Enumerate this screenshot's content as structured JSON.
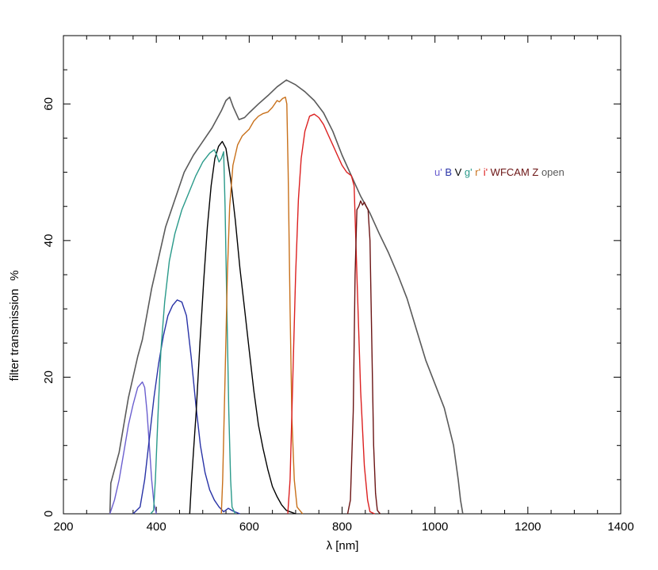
{
  "chart_data": {
    "type": "line",
    "title": "",
    "xlabel": "λ [nm]",
    "ylabel": "filter transmission",
    "ylabel_unit": "%",
    "xlim": [
      200,
      1400
    ],
    "ylim": [
      0,
      70
    ],
    "x_ticks": [
      200,
      400,
      600,
      800,
      1000,
      1200,
      1400
    ],
    "y_ticks": [
      0,
      20,
      40,
      60
    ],
    "x_tick_labels": [
      "200",
      "400",
      "600",
      "800",
      "1000",
      "1200",
      "1400"
    ],
    "y_tick_labels": [
      "0",
      "20",
      "40",
      "60"
    ],
    "grid": false,
    "legend_position": "upper-right",
    "series": [
      {
        "name": "open",
        "color": "#5a5a5a",
        "points": [
          [
            300,
            0
          ],
          [
            302,
            4.5
          ],
          [
            320,
            9
          ],
          [
            340,
            17
          ],
          [
            360,
            23
          ],
          [
            370,
            25.5
          ],
          [
            390,
            33
          ],
          [
            400,
            36
          ],
          [
            420,
            42
          ],
          [
            440,
            46
          ],
          [
            460,
            50
          ],
          [
            480,
            52.5
          ],
          [
            500,
            54.5
          ],
          [
            520,
            56.5
          ],
          [
            540,
            59
          ],
          [
            550,
            60.5
          ],
          [
            558,
            61
          ],
          [
            566,
            59.5
          ],
          [
            578,
            57.7
          ],
          [
            590,
            58
          ],
          [
            600,
            58.7
          ],
          [
            620,
            60
          ],
          [
            640,
            61.2
          ],
          [
            660,
            62.5
          ],
          [
            680,
            63.5
          ],
          [
            700,
            62.8
          ],
          [
            720,
            61.8
          ],
          [
            740,
            60.5
          ],
          [
            760,
            58.7
          ],
          [
            780,
            56
          ],
          [
            800,
            52.5
          ],
          [
            820,
            49.5
          ],
          [
            840,
            46.5
          ],
          [
            860,
            44
          ],
          [
            880,
            41
          ],
          [
            900,
            38.2
          ],
          [
            920,
            35
          ],
          [
            940,
            31.5
          ],
          [
            960,
            27
          ],
          [
            980,
            22.5
          ],
          [
            1000,
            19
          ],
          [
            1020,
            15.5
          ],
          [
            1040,
            10
          ],
          [
            1050,
            5
          ],
          [
            1055,
            2
          ],
          [
            1060,
            0
          ]
        ]
      },
      {
        "name": "u'",
        "color": "#6b5fcf",
        "points": [
          [
            300,
            0
          ],
          [
            310,
            2
          ],
          [
            320,
            5
          ],
          [
            330,
            9
          ],
          [
            340,
            13
          ],
          [
            350,
            16
          ],
          [
            360,
            18.5
          ],
          [
            370,
            19.3
          ],
          [
            375,
            18.5
          ],
          [
            380,
            15
          ],
          [
            385,
            10
          ],
          [
            390,
            5
          ],
          [
            395,
            1.5
          ],
          [
            400,
            0
          ]
        ]
      },
      {
        "name": "B",
        "color": "#2832a6",
        "points": [
          [
            350,
            0
          ],
          [
            365,
            1
          ],
          [
            375,
            5
          ],
          [
            385,
            11
          ],
          [
            395,
            17
          ],
          [
            405,
            22
          ],
          [
            415,
            26
          ],
          [
            425,
            29
          ],
          [
            435,
            30.5
          ],
          [
            445,
            31.3
          ],
          [
            455,
            31
          ],
          [
            465,
            29
          ],
          [
            475,
            23
          ],
          [
            485,
            16
          ],
          [
            495,
            10
          ],
          [
            505,
            6
          ],
          [
            515,
            3.5
          ],
          [
            525,
            2
          ],
          [
            535,
            1
          ],
          [
            545,
            0.3
          ],
          [
            555,
            0.8
          ],
          [
            565,
            0.4
          ],
          [
            580,
            0
          ]
        ]
      },
      {
        "name": "V",
        "color": "#000000",
        "points": [
          [
            472,
            0
          ],
          [
            476,
            5
          ],
          [
            480,
            9
          ],
          [
            486,
            15
          ],
          [
            494,
            25
          ],
          [
            502,
            34
          ],
          [
            510,
            42
          ],
          [
            518,
            48
          ],
          [
            526,
            52
          ],
          [
            534,
            53.8
          ],
          [
            542,
            54.5
          ],
          [
            550,
            53.5
          ],
          [
            560,
            49
          ],
          [
            570,
            43
          ],
          [
            580,
            36
          ],
          [
            590,
            30
          ],
          [
            600,
            24
          ],
          [
            610,
            18
          ],
          [
            620,
            13
          ],
          [
            630,
            9.5
          ],
          [
            640,
            6.5
          ],
          [
            650,
            4
          ],
          [
            660,
            2.5
          ],
          [
            670,
            1.3
          ],
          [
            680,
            0.5
          ],
          [
            700,
            0
          ]
        ]
      },
      {
        "name": "g'",
        "color": "#2a9a8a",
        "points": [
          [
            388,
            0
          ],
          [
            394,
            0.5
          ],
          [
            398,
            5
          ],
          [
            404,
            15
          ],
          [
            410,
            24
          ],
          [
            418,
            31
          ],
          [
            428,
            37
          ],
          [
            440,
            41
          ],
          [
            455,
            44.5
          ],
          [
            470,
            47
          ],
          [
            485,
            49.5
          ],
          [
            500,
            51.5
          ],
          [
            515,
            52.8
          ],
          [
            525,
            53.3
          ],
          [
            530,
            52.5
          ],
          [
            535,
            51.5
          ],
          [
            540,
            52
          ],
          [
            545,
            53
          ],
          [
            548,
            45
          ],
          [
            552,
            30
          ],
          [
            556,
            15
          ],
          [
            560,
            5
          ],
          [
            563,
            1
          ],
          [
            570,
            0
          ]
        ]
      },
      {
        "name": "r'",
        "color": "#c8701a",
        "points": [
          [
            540,
            0
          ],
          [
            543,
            5
          ],
          [
            548,
            20
          ],
          [
            553,
            35
          ],
          [
            558,
            45
          ],
          [
            565,
            51
          ],
          [
            575,
            54
          ],
          [
            585,
            55.3
          ],
          [
            600,
            56.3
          ],
          [
            610,
            57.5
          ],
          [
            620,
            58.2
          ],
          [
            630,
            58.6
          ],
          [
            640,
            58.8
          ],
          [
            650,
            59.5
          ],
          [
            660,
            60.5
          ],
          [
            665,
            60.3
          ],
          [
            672,
            60.8
          ],
          [
            678,
            61
          ],
          [
            681,
            60
          ],
          [
            684,
            50
          ],
          [
            688,
            30
          ],
          [
            692,
            14
          ],
          [
            697,
            5
          ],
          [
            703,
            1
          ],
          [
            715,
            0
          ]
        ]
      },
      {
        "name": "i'",
        "color": "#dc2020",
        "points": [
          [
            683,
            0
          ],
          [
            688,
            5
          ],
          [
            694,
            20
          ],
          [
            700,
            35
          ],
          [
            706,
            46
          ],
          [
            712,
            52
          ],
          [
            720,
            56
          ],
          [
            730,
            58.2
          ],
          [
            740,
            58.5
          ],
          [
            750,
            58
          ],
          [
            760,
            57
          ],
          [
            770,
            55.5
          ],
          [
            780,
            54
          ],
          [
            790,
            52.5
          ],
          [
            800,
            51
          ],
          [
            810,
            50
          ],
          [
            820,
            49.5
          ],
          [
            826,
            48
          ],
          [
            832,
            35
          ],
          [
            840,
            18
          ],
          [
            848,
            7
          ],
          [
            855,
            2
          ],
          [
            860,
            0.3
          ],
          [
            870,
            0
          ]
        ]
      },
      {
        "name": "WFCAM Z",
        "color": "#6b1414",
        "points": [
          [
            812,
            0
          ],
          [
            818,
            2
          ],
          [
            824,
            15
          ],
          [
            828,
            35
          ],
          [
            832,
            44.5
          ],
          [
            836,
            45
          ],
          [
            840,
            45.8
          ],
          [
            844,
            45.2
          ],
          [
            848,
            45.6
          ],
          [
            852,
            45
          ],
          [
            856,
            44.5
          ],
          [
            860,
            40
          ],
          [
            864,
            25
          ],
          [
            868,
            10
          ],
          [
            872,
            3
          ],
          [
            876,
            0.5
          ],
          [
            882,
            0
          ]
        ]
      }
    ]
  }
}
